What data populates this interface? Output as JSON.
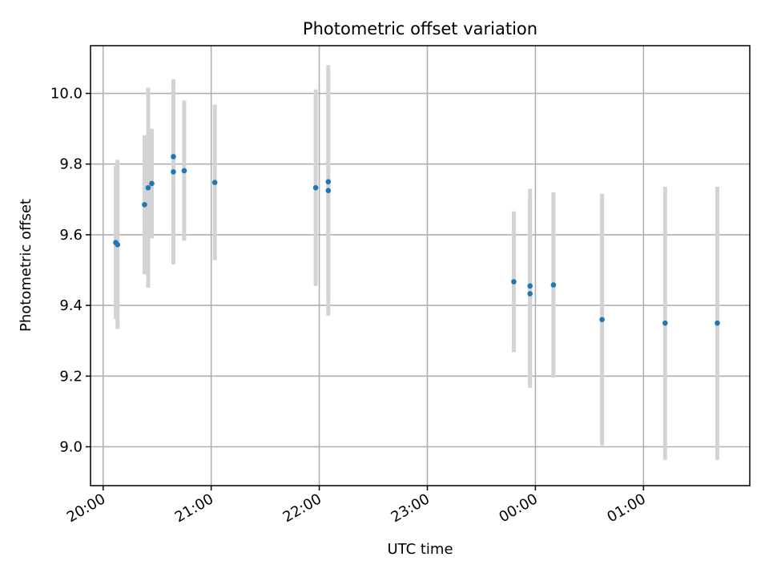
{
  "chart_data": {
    "type": "scatter",
    "title": "Photometric offset variation",
    "xlabel": "UTC time",
    "ylabel": "Photometric offset",
    "x_ticks": [
      "20:00",
      "21:00",
      "22:00",
      "23:00",
      "00:00",
      "01:00"
    ],
    "y_ticks": [
      "9.0",
      "9.2",
      "9.4",
      "9.6",
      "9.8",
      "10.0"
    ],
    "xlim": [
      "19:53",
      "01:59"
    ],
    "ylim": [
      8.89,
      10.135
    ],
    "grid": true,
    "colors": {
      "points": "#1f77b4",
      "errorbars": "#d3d3d3",
      "grid": "#b0b0b0"
    },
    "points": [
      {
        "time": "20:07",
        "y": 9.578,
        "yerr_low": 9.362,
        "yerr_high": 9.795
      },
      {
        "time": "20:08",
        "y": 9.572,
        "yerr_low": 9.333,
        "yerr_high": 9.812
      },
      {
        "time": "20:23",
        "y": 9.685,
        "yerr_low": 9.488,
        "yerr_high": 9.882
      },
      {
        "time": "20:25",
        "y": 9.733,
        "yerr_low": 9.45,
        "yerr_high": 10.016
      },
      {
        "time": "20:27",
        "y": 9.745,
        "yerr_low": 9.59,
        "yerr_high": 9.9
      },
      {
        "time": "20:39",
        "y": 9.821,
        "yerr_low": 9.605,
        "yerr_high": 10.04
      },
      {
        "time": "20:39",
        "y": 9.778,
        "yerr_low": 9.516,
        "yerr_high": 10.04
      },
      {
        "time": "20:45",
        "y": 9.781,
        "yerr_low": 9.583,
        "yerr_high": 9.98
      },
      {
        "time": "21:02",
        "y": 9.748,
        "yerr_low": 9.528,
        "yerr_high": 9.968
      },
      {
        "time": "21:58",
        "y": 9.733,
        "yerr_low": 9.455,
        "yerr_high": 10.011
      },
      {
        "time": "22:05",
        "y": 9.725,
        "yerr_low": 9.371,
        "yerr_high": 10.08
      },
      {
        "time": "22:05",
        "y": 9.75,
        "yerr_low": 9.435,
        "yerr_high": 10.065
      },
      {
        "time": "23:48",
        "y": 9.467,
        "yerr_low": 9.268,
        "yerr_high": 9.666
      },
      {
        "time": "23:57",
        "y": 9.455,
        "yerr_low": 9.18,
        "yerr_high": 9.73
      },
      {
        "time": "23:57",
        "y": 9.433,
        "yerr_low": 9.167,
        "yerr_high": 9.7
      },
      {
        "time": "00:10",
        "y": 9.458,
        "yerr_low": 9.196,
        "yerr_high": 9.72
      },
      {
        "time": "00:37",
        "y": 9.36,
        "yerr_low": 9.004,
        "yerr_high": 9.716
      },
      {
        "time": "01:12",
        "y": 9.35,
        "yerr_low": 8.963,
        "yerr_high": 9.736
      },
      {
        "time": "01:41",
        "y": 9.35,
        "yerr_low": 8.963,
        "yerr_high": 9.736
      }
    ]
  }
}
